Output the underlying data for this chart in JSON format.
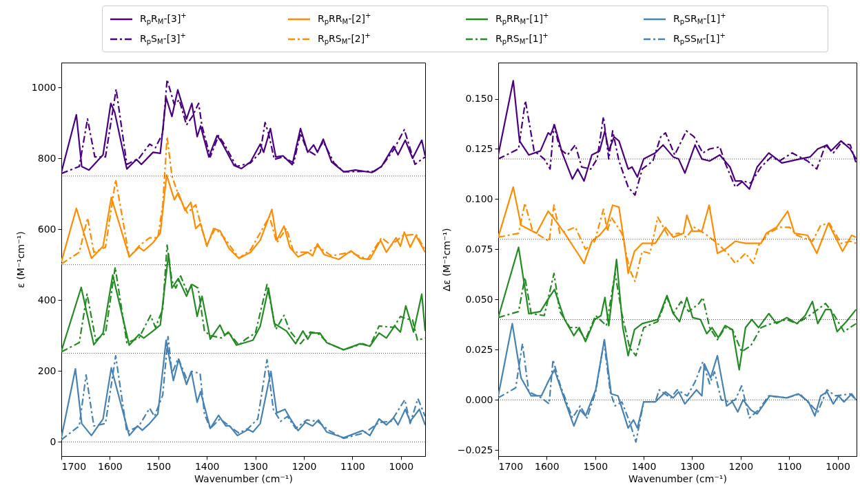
{
  "chart_data": [
    {
      "type": "line",
      "xlabel": "Wavenumber (cm⁻¹)",
      "ylabel": "ε (M⁻¹cm⁻¹)",
      "xlim": [
        1700,
        950
      ],
      "ylim": [
        -40,
        1070
      ],
      "xticks": [
        1700,
        1600,
        1500,
        1400,
        1300,
        1200,
        1100,
        1000
      ],
      "yticks": [
        0,
        200,
        400,
        600,
        800,
        1000
      ],
      "legend": "top",
      "ref_lines": [
        {
          "axis": "y",
          "value": 0,
          "color": "#000000",
          "line_style": "dotted"
        },
        {
          "axis": "y",
          "value": 250,
          "color": "#000000",
          "line_style": "dotted"
        },
        {
          "axis": "y",
          "value": 500,
          "color": "#000000",
          "line_style": "dotted"
        },
        {
          "axis": "y",
          "value": 750,
          "color": "#000000",
          "line_style": "dotted"
        }
      ],
      "series": [
        {
          "name": "R$_{p}$R$_{M}$-[3]$^{+}$",
          "color": "#4b0082",
          "line_style": "solid",
          "x": [
            1700,
            1669,
            1658,
            1643,
            1614,
            1598,
            1590,
            1565,
            1545,
            1535,
            1511,
            1496,
            1484,
            1472,
            1460,
            1442,
            1431,
            1420,
            1413,
            1396,
            1379,
            1369,
            1344,
            1329,
            1310,
            1290,
            1283,
            1269,
            1258,
            1243,
            1224,
            1207,
            1192,
            1180,
            1172,
            1160,
            1143,
            1118,
            1094,
            1060,
            1040,
            1015,
            1006,
            991,
            976,
            957,
            950
          ],
          "values": [
            760,
            923,
            777,
            767,
            810,
            955,
            930,
            770,
            797,
            783,
            817,
            814,
            971,
            918,
            993,
            911,
            955,
            861,
            891,
            804,
            864,
            844,
            780,
            771,
            790,
            840,
            817,
            884,
            804,
            807,
            782,
            884,
            817,
            838,
            817,
            854,
            790,
            762,
            767,
            760,
            777,
            834,
            810,
            851,
            800,
            851,
            807
          ]
        },
        {
          "name": "R$_{p}$S$_{M}$-[3]$^{+}$",
          "color": "#4b0082",
          "line_style": "dashdot",
          "x": [
            1700,
            1663,
            1646,
            1631,
            1609,
            1587,
            1565,
            1540,
            1518,
            1506,
            1491,
            1482,
            1467,
            1457,
            1442,
            1430,
            1417,
            1410,
            1393,
            1376,
            1364,
            1339,
            1310,
            1290,
            1280,
            1273,
            1261,
            1243,
            1221,
            1207,
            1194,
            1177,
            1160,
            1138,
            1118,
            1079,
            1055,
            1040,
            1015,
            993,
            971,
            950
          ],
          "values": [
            757,
            777,
            911,
            804,
            804,
            995,
            783,
            800,
            840,
            830,
            871,
            1022,
            951,
            965,
            894,
            918,
            955,
            891,
            804,
            864,
            840,
            777,
            787,
            817,
            901,
            871,
            797,
            804,
            787,
            871,
            824,
            810,
            847,
            787,
            762,
            763,
            763,
            777,
            824,
            881,
            783,
            804
          ]
        },
        {
          "name": "R$_{p}$RR$_{M}$-[2]$^{+}$",
          "color": "#ff8c00",
          "line_style": "solid",
          "x": [
            1700,
            1669,
            1638,
            1614,
            1597,
            1560,
            1540,
            1530,
            1511,
            1496,
            1483,
            1467,
            1459,
            1445,
            1433,
            1423,
            1413,
            1400,
            1386,
            1373,
            1354,
            1334,
            1310,
            1290,
            1266,
            1256,
            1241,
            1229,
            1212,
            1192,
            1182,
            1172,
            1158,
            1128,
            1103,
            1084,
            1064,
            1042,
            1030,
            1010,
            1001,
            993,
            981,
            969,
            950
          ],
          "values": [
            508,
            659,
            518,
            552,
            690,
            522,
            549,
            539,
            562,
            589,
            753,
            683,
            703,
            653,
            676,
            602,
            616,
            552,
            602,
            596,
            545,
            518,
            535,
            569,
            656,
            569,
            609,
            549,
            522,
            535,
            525,
            559,
            528,
            515,
            539,
            518,
            515,
            569,
            535,
            576,
            552,
            592,
            549,
            582,
            535
          ]
        },
        {
          "name": "R$_{p}$RS$_{M}$-[2]$^{+}$",
          "color": "#ff8c00",
          "line_style": "dashdot",
          "x": [
            1700,
            1663,
            1646,
            1633,
            1609,
            1588,
            1560,
            1538,
            1518,
            1501,
            1491,
            1482,
            1472,
            1457,
            1440,
            1423,
            1410,
            1400,
            1383,
            1364,
            1334,
            1310,
            1285,
            1271,
            1256,
            1236,
            1221,
            1192,
            1172,
            1143,
            1104,
            1069,
            1040,
            1020,
            996,
            969,
            950
          ],
          "values": [
            502,
            535,
            632,
            535,
            549,
            740,
            522,
            555,
            576,
            576,
            669,
            861,
            750,
            690,
            646,
            669,
            599,
            555,
            602,
            576,
            518,
            542,
            602,
            636,
            562,
            602,
            535,
            535,
            552,
            525,
            535,
            515,
            576,
            555,
            582,
            586,
            542
          ]
        },
        {
          "name": "R$_{p}$RR$_{M}$-[1]$^{+}$",
          "color": "#228b22",
          "line_style": "solid",
          "x": [
            1700,
            1659,
            1633,
            1614,
            1594,
            1560,
            1540,
            1530,
            1511,
            1496,
            1479,
            1472,
            1459,
            1442,
            1432,
            1420,
            1410,
            1393,
            1373,
            1364,
            1354,
            1339,
            1305,
            1290,
            1273,
            1261,
            1236,
            1217,
            1202,
            1192,
            1185,
            1167,
            1153,
            1118,
            1084,
            1064,
            1045,
            1030,
            1013,
            1001,
            990,
            974,
            957,
            950
          ],
          "values": [
            256,
            436,
            274,
            307,
            471,
            273,
            303,
            293,
            313,
            330,
            530,
            434,
            461,
            411,
            444,
            354,
            411,
            290,
            330,
            303,
            307,
            273,
            287,
            327,
            434,
            334,
            313,
            277,
            313,
            290,
            307,
            307,
            280,
            260,
            277,
            270,
            307,
            293,
            327,
            310,
            384,
            310,
            417,
            313
          ]
        },
        {
          "name": "R$_{p}$RS$_{M}$-[1]$^{+}$",
          "color": "#228b22",
          "line_style": "dashdot",
          "x": [
            1700,
            1663,
            1647,
            1629,
            1609,
            1589,
            1565,
            1540,
            1516,
            1506,
            1491,
            1482,
            1472,
            1464,
            1454,
            1440,
            1430,
            1418,
            1405,
            1393,
            1369,
            1356,
            1334,
            1320,
            1300,
            1276,
            1258,
            1241,
            1229,
            1207,
            1187,
            1172,
            1148,
            1118,
            1079,
            1064,
            1045,
            1015,
            1001,
            988,
            976,
            966,
            950
          ],
          "values": [
            254,
            280,
            417,
            287,
            307,
            493,
            280,
            293,
            357,
            323,
            374,
            555,
            454,
            434,
            468,
            421,
            444,
            434,
            313,
            300,
            293,
            310,
            273,
            290,
            307,
            444,
            317,
            357,
            313,
            277,
            310,
            307,
            277,
            260,
            277,
            270,
            327,
            323,
            354,
            347,
            344,
            287,
            293
          ]
        },
        {
          "name": "R$_{p}$SR$_{M}$-[1]$^{+}$",
          "color": "#4682b4",
          "line_style": "solid",
          "x": [
            1700,
            1671,
            1658,
            1638,
            1614,
            1597,
            1560,
            1543,
            1533,
            1518,
            1501,
            1484,
            1469,
            1458,
            1442,
            1432,
            1420,
            1413,
            1393,
            1376,
            1361,
            1353,
            1337,
            1315,
            1305,
            1290,
            1268,
            1256,
            1239,
            1229,
            1212,
            1197,
            1182,
            1170,
            1153,
            1118,
            1079,
            1064,
            1045,
            1030,
            1015,
            1006,
            991,
            981,
            962,
            950
          ],
          "values": [
            12,
            206,
            52,
            18,
            65,
            209,
            18,
            45,
            33,
            52,
            79,
            287,
            173,
            233,
            162,
            199,
            112,
            142,
            38,
            75,
            45,
            45,
            18,
            35,
            28,
            52,
            199,
            82,
            92,
            68,
            32,
            55,
            45,
            62,
            28,
            12,
            32,
            18,
            65,
            48,
            68,
            48,
            92,
            58,
            92,
            48
          ]
        },
        {
          "name": "R$_{p}$SS$_{M}$-[1]$^{+}$",
          "color": "#4682b4",
          "line_style": "dashdot",
          "x": [
            1700,
            1663,
            1649,
            1633,
            1609,
            1588,
            1565,
            1540,
            1518,
            1508,
            1491,
            1480,
            1472,
            1459,
            1440,
            1431,
            1414,
            1405,
            1393,
            1373,
            1354,
            1334,
            1315,
            1295,
            1276,
            1263,
            1248,
            1234,
            1217,
            1194,
            1172,
            1148,
            1118,
            1074,
            1045,
            1020,
            992,
            981,
            965,
            950
          ],
          "values": [
            6,
            45,
            189,
            45,
            52,
            243,
            28,
            45,
            95,
            72,
            132,
            297,
            193,
            236,
            172,
            199,
            193,
            79,
            38,
            65,
            45,
            25,
            38,
            65,
            232,
            92,
            58,
            72,
            38,
            62,
            58,
            32,
            10,
            26,
            55,
            58,
            119,
            52,
            122,
            72
          ]
        }
      ]
    },
    {
      "type": "line",
      "xlabel": "Wavenumber (cm⁻¹)",
      "ylabel": "Δε (M⁻¹cm⁻¹)",
      "xlim": [
        1700,
        961
      ],
      "ylim": [
        -0.028,
        0.168
      ],
      "xticks": [
        1700,
        1600,
        1500,
        1400,
        1300,
        1200,
        1100,
        1000
      ],
      "yticks": [
        {
          "value": -0.025,
          "label": "−0.025"
        },
        {
          "value": 0,
          "label": "0.000"
        },
        {
          "value": 0.025,
          "label": "0.025"
        },
        {
          "value": 0.05,
          "label": "0.050"
        },
        {
          "value": 0.075,
          "label": "0.075"
        },
        {
          "value": 0.1,
          "label": "0.100"
        },
        {
          "value": 0.125,
          "label": "0.125"
        },
        {
          "value": 0.15,
          "label": "0.150"
        }
      ],
      "ref_lines": [
        {
          "axis": "y",
          "value": 0,
          "color": "#000000",
          "line_style": "dotted"
        },
        {
          "axis": "y",
          "value": 0.04,
          "color": "#000000",
          "line_style": "dotted"
        },
        {
          "axis": "y",
          "value": 0.08,
          "color": "#000000",
          "line_style": "dotted"
        },
        {
          "axis": "y",
          "value": 0.12,
          "color": "#000000",
          "line_style": "dotted"
        }
      ],
      "series": [
        {
          "color": "#4b0082",
          "line_style": "solid",
          "x": [
            1700,
            1669,
            1656,
            1637,
            1613,
            1597,
            1592,
            1584,
            1568,
            1547,
            1536,
            1523,
            1507,
            1491,
            1480,
            1472,
            1461,
            1451,
            1432,
            1424,
            1413,
            1400,
            1376,
            1360,
            1339,
            1328,
            1315,
            1294,
            1280,
            1264,
            1243,
            1222,
            1211,
            1198,
            1182,
            1166,
            1142,
            1115,
            1078,
            1057,
            1041,
            1022,
            1014,
            993,
            974,
            962
          ],
          "values": [
            0.122,
            0.159,
            0.129,
            0.122,
            0.124,
            0.133,
            0.132,
            0.137,
            0.123,
            0.11,
            0.115,
            0.109,
            0.122,
            0.124,
            0.134,
            0.124,
            0.131,
            0.129,
            0.115,
            0.116,
            0.111,
            0.12,
            0.123,
            0.127,
            0.121,
            0.12,
            0.113,
            0.127,
            0.12,
            0.119,
            0.122,
            0.116,
            0.109,
            0.109,
            0.105,
            0.116,
            0.123,
            0.118,
            0.12,
            0.121,
            0.125,
            0.127,
            0.124,
            0.129,
            0.125,
            0.12
          ]
        },
        {
          "color": "#4b0082",
          "line_style": "dashdot",
          "x": [
            1700,
            1658,
            1644,
            1626,
            1605,
            1593,
            1585,
            1573,
            1557,
            1541,
            1528,
            1509,
            1496,
            1483,
            1472,
            1464,
            1451,
            1432,
            1418,
            1403,
            1381,
            1365,
            1355,
            1336,
            1312,
            1296,
            1278,
            1264,
            1243,
            1232,
            1211,
            1195,
            1179,
            1158,
            1137,
            1120,
            1094,
            1062,
            1043,
            1025,
            1009,
            993,
            974,
            962
          ],
          "values": [
            0.12,
            0.125,
            0.149,
            0.124,
            0.12,
            0.115,
            0.137,
            0.125,
            0.122,
            0.127,
            0.116,
            0.115,
            0.12,
            0.141,
            0.12,
            0.134,
            0.119,
            0.106,
            0.102,
            0.115,
            0.119,
            0.131,
            0.133,
            0.122,
            0.134,
            0.131,
            0.123,
            0.125,
            0.126,
            0.118,
            0.106,
            0.109,
            0.108,
            0.116,
            0.121,
            0.119,
            0.123,
            0.119,
            0.115,
            0.127,
            0.123,
            0.128,
            0.127,
            0.118
          ]
        },
        {
          "color": "#ff8c00",
          "line_style": "solid",
          "x": [
            1700,
            1669,
            1653,
            1621,
            1597,
            1587,
            1563,
            1536,
            1523,
            1507,
            1491,
            1477,
            1464,
            1451,
            1440,
            1432,
            1419,
            1403,
            1376,
            1355,
            1339,
            1318,
            1311,
            1299,
            1280,
            1265,
            1248,
            1232,
            1211,
            1190,
            1158,
            1147,
            1126,
            1103,
            1089,
            1062,
            1043,
            1019,
            990,
            971,
            962
          ],
          "values": [
            0.081,
            0.106,
            0.087,
            0.083,
            0.094,
            0.091,
            0.083,
            0.073,
            0.068,
            0.079,
            0.082,
            0.086,
            0.097,
            0.096,
            0.078,
            0.063,
            0.074,
            0.078,
            0.078,
            0.086,
            0.081,
            0.083,
            0.092,
            0.084,
            0.084,
            0.097,
            0.073,
            0.075,
            0.079,
            0.078,
            0.078,
            0.083,
            0.086,
            0.094,
            0.083,
            0.082,
            0.073,
            0.088,
            0.074,
            0.082,
            0.081
          ]
        },
        {
          "color": "#ff8c00",
          "line_style": "dashdot",
          "x": [
            1700,
            1658,
            1645,
            1629,
            1595,
            1585,
            1573,
            1541,
            1520,
            1501,
            1483,
            1475,
            1467,
            1445,
            1429,
            1418,
            1403,
            1387,
            1371,
            1350,
            1328,
            1312,
            1296,
            1275,
            1248,
            1227,
            1211,
            1190,
            1174,
            1163,
            1142,
            1120,
            1099,
            1084,
            1052,
            1035,
            1017,
            993,
            974,
            962
          ],
          "values": [
            0.081,
            0.083,
            0.098,
            0.084,
            0.079,
            0.097,
            0.083,
            0.086,
            0.075,
            0.079,
            0.095,
            0.084,
            0.091,
            0.083,
            0.065,
            0.059,
            0.074,
            0.073,
            0.091,
            0.082,
            0.083,
            0.081,
            0.086,
            0.083,
            0.078,
            0.073,
            0.068,
            0.073,
            0.068,
            0.077,
            0.083,
            0.086,
            0.086,
            0.082,
            0.079,
            0.087,
            0.088,
            0.078,
            0.079,
            0.078
          ]
        },
        {
          "color": "#228b22",
          "line_style": "solid",
          "x": [
            1700,
            1658,
            1637,
            1613,
            1595,
            1584,
            1563,
            1544,
            1533,
            1520,
            1501,
            1488,
            1480,
            1472,
            1456,
            1443,
            1432,
            1419,
            1403,
            1371,
            1352,
            1339,
            1326,
            1311,
            1299,
            1283,
            1270,
            1259,
            1246,
            1232,
            1217,
            1203,
            1190,
            1177,
            1163,
            1142,
            1126,
            1105,
            1084,
            1067,
            1052,
            1041,
            1025,
            1014,
            1001,
            982,
            962
          ],
          "values": [
            0.041,
            0.076,
            0.043,
            0.044,
            0.051,
            0.055,
            0.04,
            0.032,
            0.036,
            0.029,
            0.04,
            0.042,
            0.051,
            0.037,
            0.07,
            0.036,
            0.022,
            0.035,
            0.038,
            0.04,
            0.052,
            0.043,
            0.039,
            0.051,
            0.041,
            0.04,
            0.033,
            0.036,
            0.031,
            0.037,
            0.035,
            0.015,
            0.036,
            0.04,
            0.036,
            0.043,
            0.038,
            0.041,
            0.038,
            0.042,
            0.049,
            0.038,
            0.045,
            0.045,
            0.034,
            0.039,
            0.045
          ]
        },
        {
          "color": "#228b22",
          "line_style": "dashdot",
          "x": [
            1700,
            1658,
            1645,
            1632,
            1605,
            1585,
            1573,
            1552,
            1536,
            1520,
            1499,
            1477,
            1459,
            1445,
            1429,
            1416,
            1400,
            1371,
            1352,
            1339,
            1323,
            1307,
            1286,
            1278,
            1264,
            1248,
            1232,
            1217,
            1198,
            1179,
            1158,
            1137,
            1105,
            1084,
            1052,
            1025,
            1009,
            987,
            962
          ],
          "values": [
            0.041,
            0.044,
            0.061,
            0.043,
            0.042,
            0.063,
            0.044,
            0.036,
            0.036,
            0.03,
            0.042,
            0.037,
            0.063,
            0.043,
            0.026,
            0.022,
            0.036,
            0.039,
            0.051,
            0.043,
            0.049,
            0.044,
            0.048,
            0.051,
            0.036,
            0.03,
            0.036,
            0.035,
            0.024,
            0.027,
            0.036,
            0.038,
            0.04,
            0.038,
            0.043,
            0.048,
            0.043,
            0.034,
            0.038
          ]
        },
        {
          "color": "#4682b4",
          "line_style": "solid",
          "x": [
            1700,
            1671,
            1653,
            1632,
            1611,
            1595,
            1584,
            1563,
            1544,
            1531,
            1520,
            1499,
            1481,
            1467,
            1453,
            1432,
            1421,
            1413,
            1400,
            1376,
            1355,
            1339,
            1328,
            1315,
            1291,
            1280,
            1275,
            1262,
            1248,
            1229,
            1217,
            1206,
            1195,
            1179,
            1166,
            1140,
            1105,
            1081,
            1060,
            1047,
            1035,
            1022,
            1009,
            998,
            987,
            971,
            962
          ],
          "values": [
            0.002,
            0.038,
            0.011,
            0.002,
            0.002,
            0.01,
            0.015,
            0.0,
            -0.013,
            -0.005,
            -0.008,
            0.005,
            0.03,
            0.003,
            0.002,
            -0.014,
            -0.01,
            -0.014,
            -0.001,
            -0.001,
            0.004,
            0.001,
            0.004,
            -0.002,
            0.005,
            0.002,
            0.018,
            0.011,
            0.022,
            -0.003,
            -0.001,
            -0.006,
            0.0,
            -0.005,
            -0.007,
            0.002,
            0.001,
            0.003,
            -0.001,
            -0.008,
            0.002,
            0.004,
            -0.002,
            0.002,
            -0.001,
            0.003,
            0.0
          ]
        },
        {
          "color": "#4682b4",
          "line_style": "dashdot",
          "x": [
            1700,
            1664,
            1650,
            1637,
            1611,
            1595,
            1587,
            1573,
            1547,
            1531,
            1517,
            1499,
            1482,
            1469,
            1459,
            1445,
            1429,
            1416,
            1400,
            1376,
            1368,
            1344,
            1331,
            1310,
            1294,
            1278,
            1264,
            1254,
            1240,
            1224,
            1211,
            1198,
            1182,
            1163,
            1142,
            1105,
            1078,
            1041,
            1022,
            1004,
            974,
            962
          ],
          "values": [
            0.001,
            0.006,
            0.028,
            0.004,
            0.001,
            -0.002,
            0.02,
            0.008,
            -0.009,
            -0.003,
            -0.009,
            0.004,
            0.029,
            0.004,
            -0.003,
            -0.001,
            -0.011,
            -0.021,
            -0.001,
            -0.001,
            0.005,
            0.001,
            0.005,
            0.002,
            0.009,
            0.019,
            0.008,
            0.014,
            0.0,
            -0.001,
            0.0,
            0.007,
            -0.009,
            -0.005,
            0.002,
            0.001,
            0.003,
            -0.006,
            0.005,
            0.002,
            0.003,
            0.0
          ]
        }
      ]
    }
  ]
}
